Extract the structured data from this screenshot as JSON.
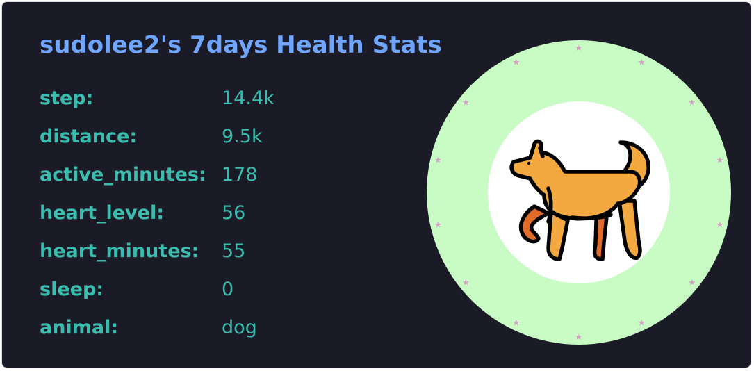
{
  "card": {
    "title": "sudolee2's 7days Health Stats",
    "stats": [
      {
        "label": "step:",
        "value": "14.4k"
      },
      {
        "label": "distance:",
        "value": "9.5k"
      },
      {
        "label": "active_minutes:",
        "value": "178"
      },
      {
        "label": "heart_level:",
        "value": "56"
      },
      {
        "label": "heart_minutes:",
        "value": "55"
      },
      {
        "label": "sleep:",
        "value": "0"
      },
      {
        "label": "animal:",
        "value": "dog"
      }
    ]
  },
  "badge": {
    "icon": "dog-icon",
    "ring_color": "#c8fcc4",
    "inner_color": "#ffffff",
    "star_color": "#d6a0c6"
  },
  "colors": {
    "background": "#1b1b27",
    "title": "#70a5fd",
    "text": "#38bdae",
    "dog_body": "#f4a940",
    "dog_shade": "#e06c2a"
  }
}
